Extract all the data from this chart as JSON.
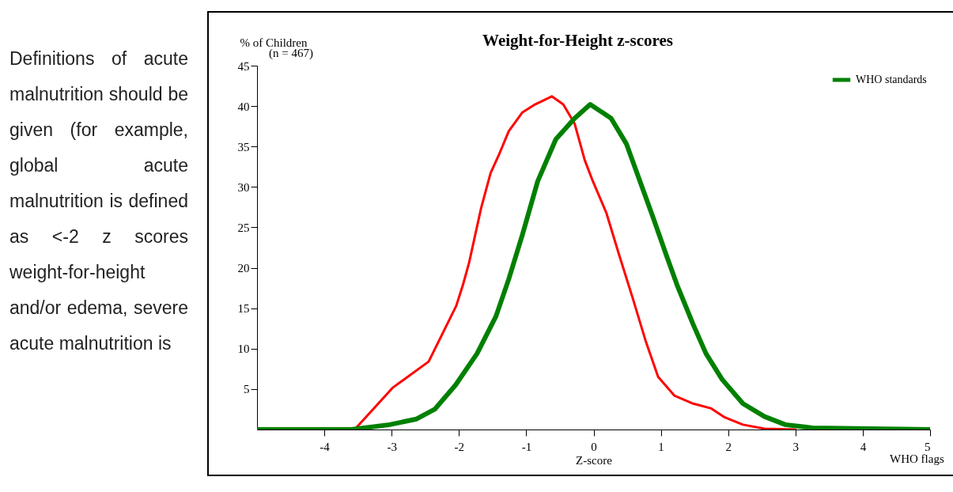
{
  "chart_data": {
    "type": "line",
    "title": "Weight-for-Height z-scores",
    "xlabel": "Z-score",
    "ylabel": "% of Children",
    "annotations": [
      "(n = 467)",
      "WHO flags",
      "Definitions of acute malnutrition should be given (for example, global acute malnutrition is defined as <-2 z scores weight-for-height and/or edema, severe acute malnutrition is"
    ],
    "series": [
      {
        "color": "#ff0000",
        "x": [
          -3.55,
          -2.98,
          -2.45,
          -2.04,
          -1.94,
          -1.85,
          -1.67,
          -1.53,
          -1.41,
          -1.26,
          -1.06,
          -0.87,
          -0.62,
          -0.45,
          -0.28,
          -0.13,
          -0.01,
          0.19,
          0.38,
          0.58,
          0.78,
          0.96,
          1.2,
          1.48,
          1.75,
          1.95,
          2.22,
          2.54,
          3.0
        ],
        "values": [
          0,
          5.2,
          8.4,
          15.3,
          17.9,
          20.6,
          27.4,
          31.7,
          33.9,
          36.9,
          39.2,
          40.2,
          41.2,
          40.2,
          37.8,
          33.3,
          30.7,
          26.8,
          21.6,
          16.3,
          10.8,
          6.5,
          4.2,
          3.2,
          2.6,
          1.5,
          0.6,
          0.1,
          0
        ]
      },
      {
        "name": "WHO standards",
        "color": "#008000",
        "x": [
          -5,
          -3.6,
          -3.03,
          -2.63,
          -2.36,
          -2.05,
          -1.73,
          -1.45,
          -1.26,
          -1.06,
          -0.83,
          -0.56,
          -0.28,
          -0.05,
          0.26,
          0.49,
          0.69,
          0.89,
          1.08,
          1.24,
          1.48,
          1.67,
          1.91,
          2.22,
          2.54,
          2.85,
          3.25,
          5
        ],
        "values": [
          0,
          0,
          0.6,
          1.3,
          2.5,
          5.5,
          9.4,
          14.0,
          18.6,
          24.0,
          30.7,
          35.9,
          38.5,
          40.2,
          38.5,
          35.3,
          30.7,
          26.1,
          21.6,
          17.9,
          13.0,
          9.4,
          6.2,
          3.2,
          1.6,
          0.6,
          0.2,
          0
        ]
      }
    ],
    "xlim": [
      -5,
      5
    ],
    "xticks": [
      -4,
      -3,
      -2,
      -1,
      0,
      1,
      2,
      3,
      4,
      5
    ],
    "ylim": [
      0,
      45
    ],
    "yticks": [
      5,
      10,
      15,
      20,
      25,
      30,
      35,
      40,
      45
    ],
    "legend": "top right",
    "marker": "none",
    "line_style": "solid"
  }
}
